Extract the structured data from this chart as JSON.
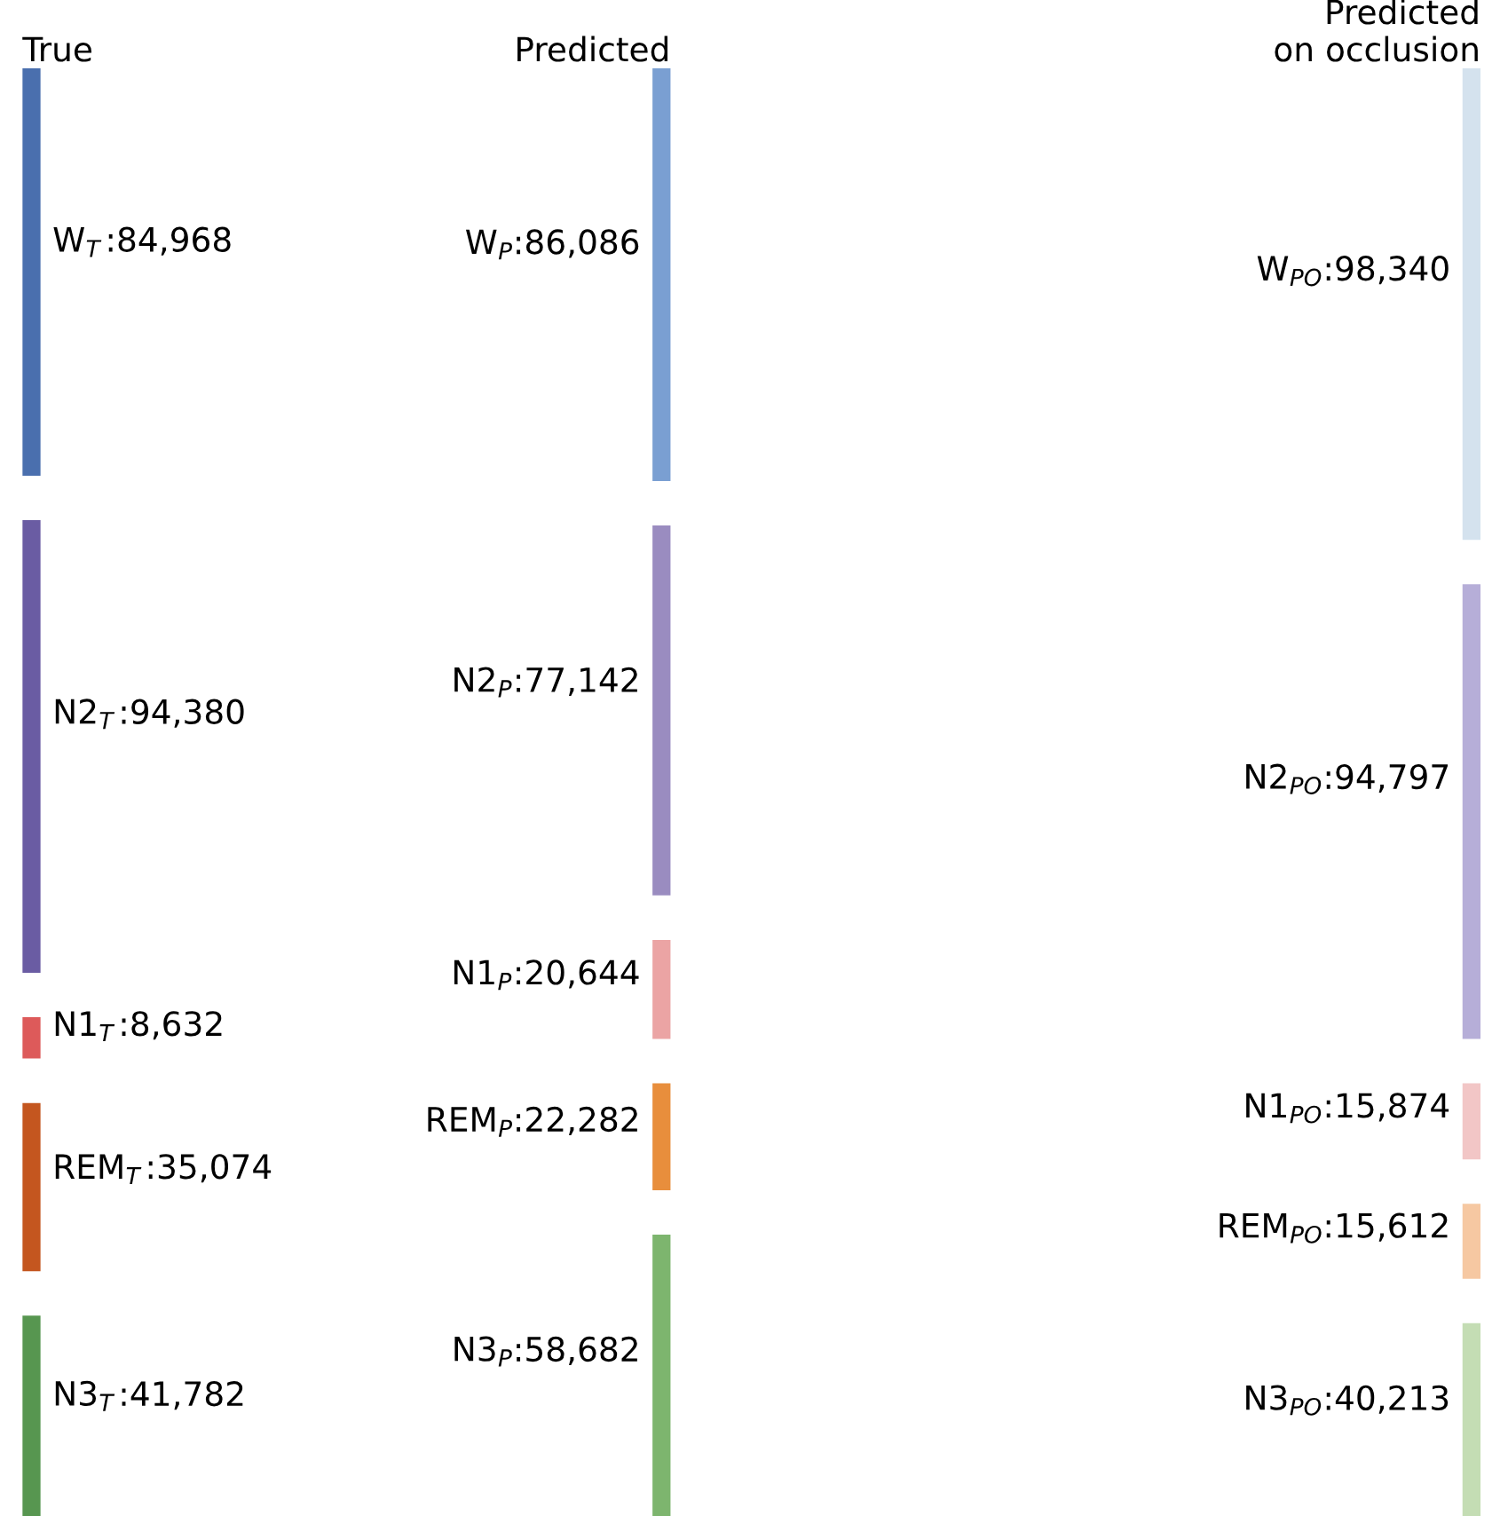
{
  "chart_data": [
    {
      "type": "other",
      "title": "True",
      "categories": [
        "W$_{T}$",
        "N2$_{T}$",
        "N1$_{T}$",
        "REM$_{T}$",
        "N3$_{T}$"
      ],
      "colors": [
        "#4a6fae",
        "#6a5ca3",
        "#dd5a5a",
        "#c4561f",
        "#579650"
      ],
      "values": [
        84968,
        94380,
        8632,
        35074,
        41782
      ],
      "value_labels": [
        ":84,968",
        ":94,380",
        ":8,632",
        ":35,074",
        ":41,782"
      ]
    },
    {
      "type": "other",
      "title": "Predicted",
      "categories": [
        "W$_{P}$",
        "N2$_{P}$",
        "N1$_{P}$",
        "REM$_{P}$",
        "N3$_{P}$"
      ],
      "colors": [
        "#7a9fd2",
        "#9a8cc0",
        "#eba4a4",
        "#e88e3c",
        "#7db56e"
      ],
      "values": [
        86086,
        77142,
        20644,
        22282,
        58682
      ],
      "value_labels": [
        ":86,086",
        ":77,142",
        ":20,644",
        ":22,282",
        ":58,682"
      ]
    },
    {
      "type": "other",
      "title": "Predicted\non occlusion",
      "categories": [
        "W$_{PO}$",
        "N2$_{PO}$",
        "N1$_{PO}$",
        "REM$_{PO}$",
        "N3$_{PO}$"
      ],
      "colors": [
        "#d4e2ee",
        "#b6aed8",
        "#f2c6c6",
        "#f6c8a2",
        "#c4ddb4"
      ],
      "values": [
        98340,
        94797,
        15874,
        15612,
        40213
      ],
      "value_labels": [
        ":98,340",
        ":94,797",
        ":15,874",
        ":15,612",
        ":40,213"
      ]
    }
  ]
}
